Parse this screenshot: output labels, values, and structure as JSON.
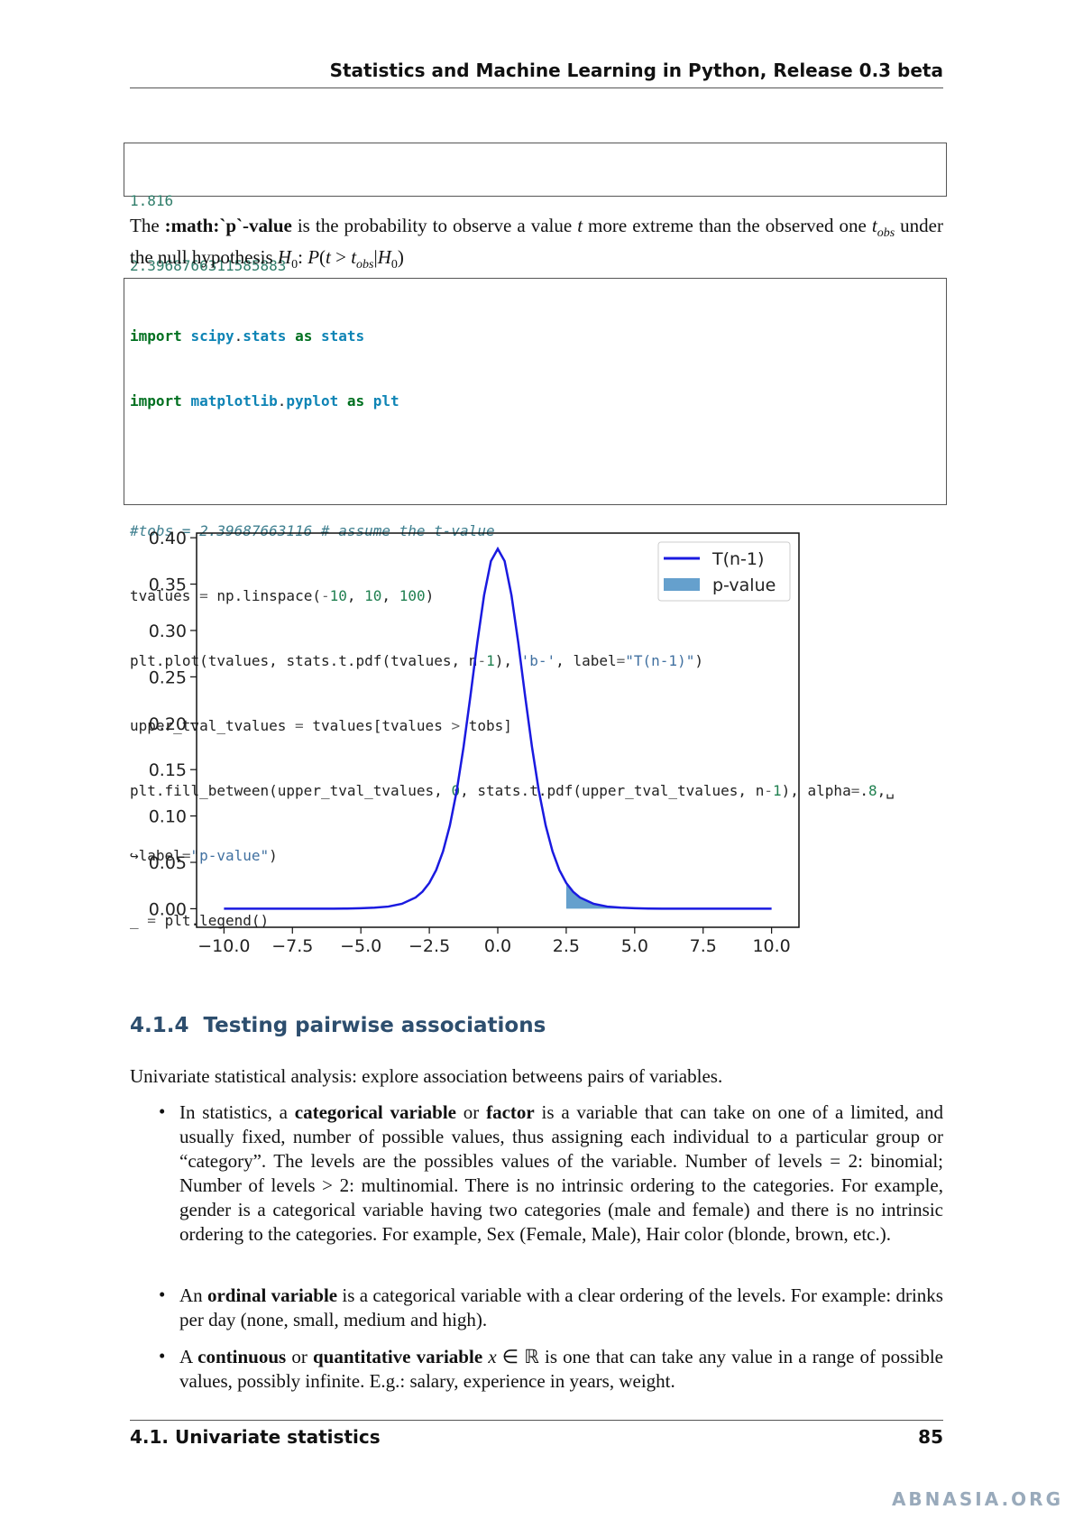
{
  "header": {
    "title": "Statistics and Machine Learning in Python, Release 0.3 beta"
  },
  "output": [
    "1.816",
    "2.3968766311585883"
  ],
  "paragraph": [
    "The ",
    ":math:`p`-value",
    " is the probability to observe a value ",
    "t",
    " more extreme than the observed one ",
    "t",
    "obs",
    " under the null hypothesis ",
    "H",
    "0",
    ": ",
    "P",
    "(",
    "t",
    " > ",
    "t",
    "obs",
    "|",
    "H",
    "0",
    ")"
  ],
  "code": [
    "import scipy.stats as stats",
    "import matplotlib.pyplot as plt",
    "#tobs = 2.39687663116 # assume the t-value",
    "tvalues = np.linspace(-10, 10, 100)",
    "plt.plot(tvalues, stats.t.pdf(tvalues, n-1), 'b-', label=\"T(n-1)\")",
    "upper_tval_tvalues = tvalues[tvalues > tobs]",
    "plt.fill_between(upper_tval_tvalues, 0, stats.t.pdf(upper_tval_tvalues, n-1), alpha=.8,␣",
    "↪label=\"p-value\")",
    "_ = plt.legend()"
  ],
  "figure": {
    "chart_data": {
      "type": "line",
      "xlim": [
        -11,
        11
      ],
      "ylim": [
        -0.02,
        0.405
      ],
      "xticks": [
        {
          "value": -10,
          "label": "−10.0"
        },
        {
          "value": -7.5,
          "label": "−7.5"
        },
        {
          "value": -5,
          "label": "−5.0"
        },
        {
          "value": -2.5,
          "label": "−2.5"
        },
        {
          "value": 0,
          "label": "0.0"
        },
        {
          "value": 2.5,
          "label": "2.5"
        },
        {
          "value": 5,
          "label": "5.0"
        },
        {
          "value": 7.5,
          "label": "7.5"
        },
        {
          "value": 10,
          "label": "10.0"
        }
      ],
      "yticks": [
        {
          "value": 0,
          "label": "0.00"
        },
        {
          "value": 0.05,
          "label": "0.05"
        },
        {
          "value": 0.1,
          "label": "0.10"
        },
        {
          "value": 0.15,
          "label": "0.15"
        },
        {
          "value": 0.2,
          "label": "0.20"
        },
        {
          "value": 0.25,
          "label": "0.25"
        },
        {
          "value": 0.3,
          "label": "0.30"
        },
        {
          "value": 0.35,
          "label": "0.35"
        },
        {
          "value": 0.4,
          "label": "0.40"
        }
      ],
      "legend": "upper right",
      "series": [
        {
          "name": "T(n-1)",
          "color": "#1a1ae0",
          "kind": "line",
          "x": [
            -10,
            -9.5,
            -9,
            -8.5,
            -8,
            -7.5,
            -7,
            -6.5,
            -6,
            -5.5,
            -5,
            -4.5,
            -4,
            -3.5,
            -3,
            -2.75,
            -2.5,
            -2.25,
            -2,
            -1.75,
            -1.5,
            -1.25,
            -1,
            -0.75,
            -0.5,
            -0.25,
            0,
            0.25,
            0.5,
            0.75,
            1,
            1.25,
            1.5,
            1.75,
            2,
            2.25,
            2.5,
            2.75,
            3,
            3.5,
            4,
            4.5,
            5,
            5.5,
            6,
            6.5,
            7,
            7.5,
            8,
            8.5,
            9,
            9.5,
            10
          ],
          "values": [
            0,
            0,
            0,
            0,
            0,
            0,
            0,
            0.0001,
            0.0001,
            0.0002,
            0.0005,
            0.0011,
            0.0023,
            0.0053,
            0.0121,
            0.0184,
            0.0278,
            0.0417,
            0.0618,
            0.0897,
            0.127,
            0.1743,
            0.229,
            0.2865,
            0.338,
            0.3748,
            0.388,
            0.3748,
            0.338,
            0.2865,
            0.229,
            0.1743,
            0.127,
            0.0897,
            0.0618,
            0.0417,
            0.0278,
            0.0184,
            0.0121,
            0.0053,
            0.0023,
            0.0011,
            0.0005,
            0.0002,
            0.0001,
            0.0001,
            0,
            0,
            0,
            0,
            0,
            0,
            0
          ]
        },
        {
          "name": "p-value",
          "color": "#3f88c0",
          "kind": "area",
          "x": [
            2.5,
            2.75,
            3,
            3.5,
            4,
            4.5,
            5,
            5.5,
            6,
            6.5,
            7,
            7.5,
            8,
            8.5,
            9,
            9.5,
            10
          ],
          "values": [
            0.0278,
            0.0184,
            0.0121,
            0.0053,
            0.0023,
            0.0011,
            0.0005,
            0.0002,
            0.0001,
            0.0001,
            0,
            0,
            0,
            0,
            0,
            0,
            0
          ]
        }
      ]
    }
  },
  "section": {
    "number": "4.1.4",
    "title": "Testing pairwise associations"
  },
  "intro": "Univariate statistical analysis: explore association betweens pairs of variables.",
  "bullets": [
    [
      "In statistics, a ",
      "categorical variable",
      " or ",
      "factor",
      " is a variable that can take on one of a limited, and usually fixed, number of possible values, thus assigning each individual to a particular group or “category”. The levels are the possibles values of the variable. Number of levels = 2: binomial; Number of levels > 2: multinomial. There is no intrinsic ordering to the categories. For example, gender is a categorical variable having two categories (male and female) and there is no intrinsic ordering to the categories. For example, Sex (Female, Male), Hair color (blonde, brown, etc.)."
    ],
    [
      "An ",
      "ordinal variable",
      " is a categorical variable with a clear ordering of the levels. For example: drinks per day (none, small, medium and high)."
    ],
    [
      "A ",
      "continuous",
      " or ",
      "quantitative variable",
      " ",
      "x",
      " ∈ ℝ is one that can take any value in a range of possible values, possibly infinite. E.g.: salary, experience in years, weight."
    ]
  ],
  "footer": {
    "section": "4.1. Univariate statistics",
    "page": "85"
  },
  "watermark": "ABNASIA.ORG"
}
